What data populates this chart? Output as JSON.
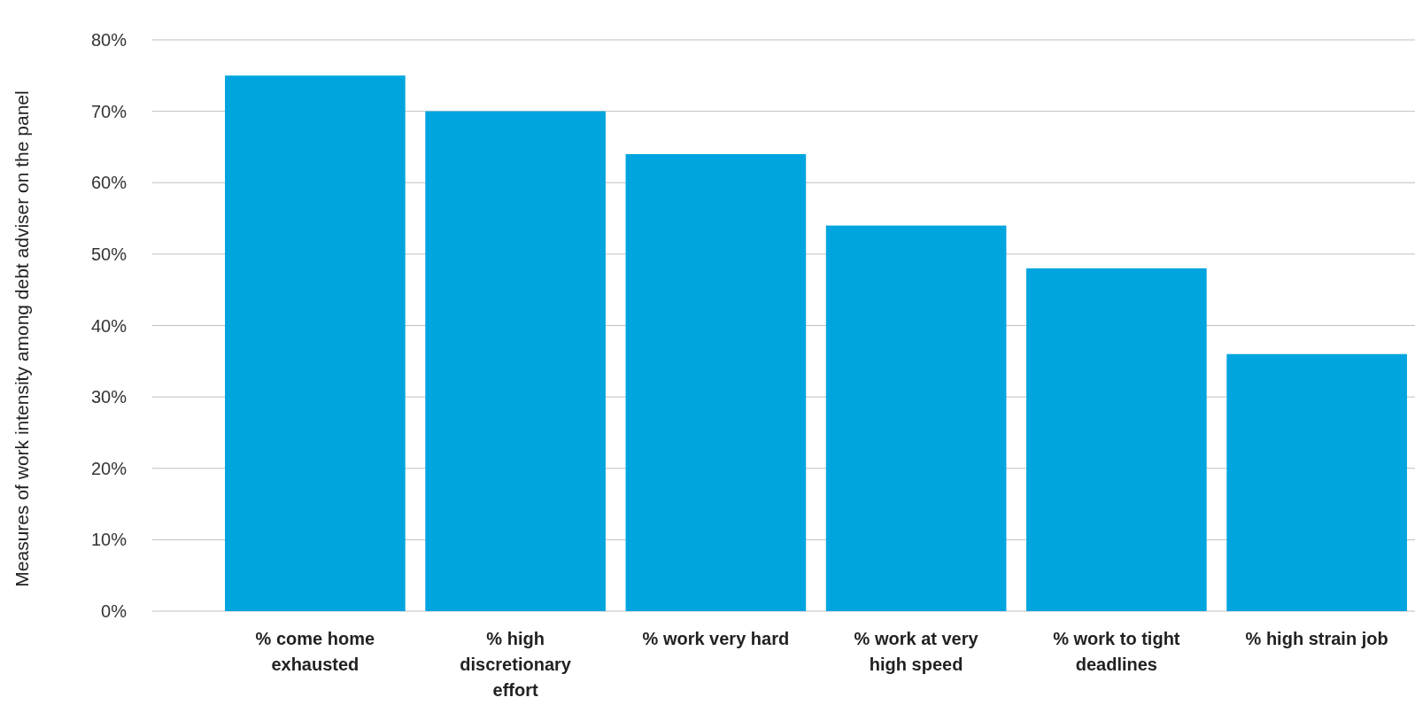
{
  "chart_data": {
    "type": "bar",
    "ylabel": "Measures of work intensity among debt adviser on the panel",
    "categories": [
      "% come home exhausted",
      "% high discretionary effort",
      "% work very hard",
      "% work at very high speed",
      "% work to tight deadlines",
      "% high strain job"
    ],
    "values": [
      75,
      70,
      64,
      54,
      48,
      36
    ],
    "color": "#00a5df",
    "ylim": [
      0,
      80
    ],
    "yticks": [
      {
        "value": 0,
        "label": "0%"
      },
      {
        "value": 10,
        "label": "10%"
      },
      {
        "value": 20,
        "label": "20%"
      },
      {
        "value": 30,
        "label": "30%"
      },
      {
        "value": 40,
        "label": "40%"
      },
      {
        "value": 50,
        "label": "50%"
      },
      {
        "value": 60,
        "label": "60%"
      },
      {
        "value": 70,
        "label": "70%"
      },
      {
        "value": 80,
        "label": "80%"
      }
    ],
    "grid": "y"
  }
}
